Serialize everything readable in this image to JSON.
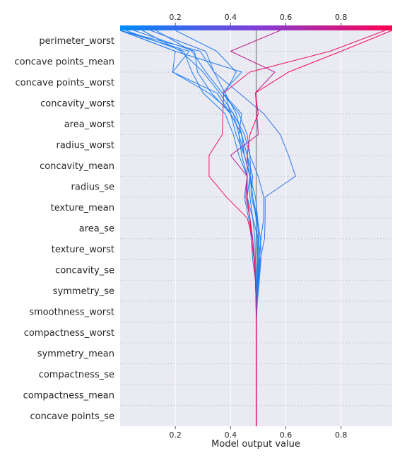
{
  "chart_data": {
    "type": "line",
    "title": "",
    "xlabel": "Model output value",
    "ylabel": "",
    "xlim": [
      0.0,
      0.985
    ],
    "xticks": [
      0.2,
      0.4,
      0.6,
      0.8
    ],
    "xtick_labels": [
      "0.2",
      "0.4",
      "0.6",
      "0.8"
    ],
    "base_value": 0.493,
    "grid": true,
    "legend": "none",
    "colorbar": {
      "position": "top",
      "from": "#008bfb",
      "mid": "#7f3fd8",
      "to": "#ff0051"
    },
    "features": [
      "concave points_se",
      "compactness_mean",
      "compactness_se",
      "symmetry_mean",
      "compactness_worst",
      "smoothness_worst",
      "symmetry_se",
      "concavity_se",
      "texture_worst",
      "area_se",
      "texture_mean",
      "radius_se",
      "concavity_mean",
      "radius_worst",
      "area_worst",
      "concavity_worst",
      "concave points_worst",
      "concave points_mean",
      "perimeter_worst"
    ],
    "series": [
      {
        "values": [
          0.493,
          0.493,
          0.493,
          0.493,
          0.493,
          0.493,
          0.493,
          0.49,
          0.486,
          0.48,
          0.47,
          0.46,
          0.47,
          0.45,
          0.44,
          0.42,
          0.38,
          0.34,
          0.29,
          0.0
        ],
        "color": "#1e7ef2"
      },
      {
        "values": [
          0.493,
          0.493,
          0.493,
          0.493,
          0.493,
          0.493,
          0.494,
          0.497,
          0.5,
          0.5,
          0.48,
          0.46,
          0.46,
          0.43,
          0.41,
          0.38,
          0.3,
          0.26,
          0.23,
          0.02
        ],
        "color": "#1e7ef2"
      },
      {
        "values": [
          0.493,
          0.493,
          0.493,
          0.493,
          0.493,
          0.493,
          0.493,
          0.492,
          0.49,
          0.488,
          0.48,
          0.47,
          0.47,
          0.45,
          0.42,
          0.4,
          0.33,
          0.28,
          0.27,
          0.05
        ],
        "color": "#1e7ef2"
      },
      {
        "values": [
          0.493,
          0.493,
          0.493,
          0.493,
          0.493,
          0.493,
          0.494,
          0.498,
          0.503,
          0.51,
          0.52,
          0.52,
          0.5,
          0.47,
          0.45,
          0.41,
          0.36,
          0.3,
          0.22,
          0.08
        ],
        "color": "#1e7ef2"
      },
      {
        "values": [
          0.493,
          0.493,
          0.493,
          0.493,
          0.493,
          0.493,
          0.496,
          0.502,
          0.507,
          0.523,
          0.525,
          0.525,
          0.635,
          0.61,
          0.58,
          0.52,
          0.43,
          0.34,
          0.31,
          0.11
        ],
        "color": "#2f74ef"
      },
      {
        "values": [
          0.493,
          0.493,
          0.493,
          0.493,
          0.493,
          0.493,
          0.497,
          0.504,
          0.51,
          0.508,
          0.497,
          0.48,
          0.473,
          0.47,
          0.46,
          0.43,
          0.37,
          0.31,
          0.26,
          0.13
        ],
        "color": "#1e7ef2"
      },
      {
        "values": [
          0.493,
          0.493,
          0.493,
          0.493,
          0.493,
          0.493,
          0.495,
          0.5,
          0.505,
          0.503,
          0.495,
          0.475,
          0.48,
          0.46,
          0.44,
          0.4,
          0.35,
          0.19,
          0.25,
          0.0
        ],
        "color": "#1e7ef2"
      },
      {
        "values": [
          0.493,
          0.493,
          0.493,
          0.493,
          0.493,
          0.493,
          0.494,
          0.495,
          0.498,
          0.496,
          0.492,
          0.48,
          0.47,
          0.45,
          0.43,
          0.41,
          0.32,
          0.19,
          0.2,
          0.0
        ],
        "color": "#1e7ef2"
      },
      {
        "values": [
          0.493,
          0.493,
          0.493,
          0.493,
          0.493,
          0.493,
          0.494,
          0.496,
          0.498,
          0.5,
          0.498,
          0.49,
          0.47,
          0.46,
          0.44,
          0.4,
          0.38,
          0.42,
          0.35,
          0.2
        ],
        "color": "#1e7ef2"
      },
      {
        "values": [
          0.493,
          0.493,
          0.493,
          0.493,
          0.493,
          0.493,
          0.492,
          0.49,
          0.48,
          0.475,
          0.465,
          0.45,
          0.46,
          0.44,
          0.43,
          0.44,
          0.37,
          0.44,
          0.2,
          0.0
        ],
        "color": "#1e7ef2"
      },
      {
        "values": [
          0.493,
          0.493,
          0.493,
          0.493,
          0.493,
          0.493,
          0.492,
          0.49,
          0.487,
          0.48,
          0.46,
          0.385,
          0.322,
          0.322,
          0.37,
          0.372,
          0.375,
          0.47,
          0.76,
          0.96
        ],
        "color": "#e8196a"
      },
      {
        "values": [
          0.493,
          0.493,
          0.493,
          0.493,
          0.493,
          0.493,
          0.492,
          0.49,
          0.485,
          0.48,
          0.47,
          0.455,
          0.46,
          0.4,
          0.5,
          0.495,
          0.49,
          0.56,
          0.4,
          0.58
        ],
        "color": "#b8208f"
      },
      {
        "values": [
          0.493,
          0.493,
          0.493,
          0.493,
          0.493,
          0.493,
          0.492,
          0.49,
          0.485,
          0.475,
          0.47,
          0.46,
          0.46,
          0.46,
          0.47,
          0.5,
          0.49,
          0.61,
          0.8,
          0.985
        ],
        "color": "#ff0a55"
      }
    ]
  }
}
